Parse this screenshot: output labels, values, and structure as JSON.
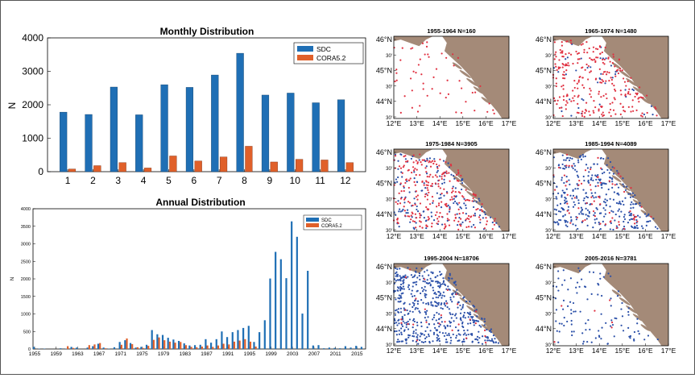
{
  "colors": {
    "sdc": "#1f6fb5",
    "cora": "#e0602a",
    "land": "#a48a78",
    "sea": "#ffffff",
    "sdc_dot": "#2a4fa8",
    "cora_dot": "#e03040"
  },
  "chart_data": [
    {
      "type": "bar",
      "title": "Monthly Distribution",
      "xlabel": "",
      "ylabel": "N",
      "ylim": [
        0,
        4000
      ],
      "yticks": [
        "0",
        "1000",
        "2000",
        "3000",
        "4000"
      ],
      "categories": [
        "1",
        "2",
        "3",
        "4",
        "5",
        "6",
        "7",
        "8",
        "9",
        "10",
        "11",
        "12"
      ],
      "legend_placement": "top-right",
      "series": [
        {
          "name": "SDC",
          "values": [
            1780,
            1710,
            2530,
            1700,
            2600,
            2520,
            2890,
            3540,
            2290,
            2350,
            2060,
            2150
          ]
        },
        {
          "name": "CORA5.2",
          "values": [
            80,
            180,
            270,
            110,
            470,
            320,
            440,
            760,
            290,
            370,
            350,
            270
          ]
        }
      ]
    },
    {
      "type": "bar",
      "title": "Annual Distribution",
      "xlabel": "",
      "ylabel": "N",
      "ylim": [
        0,
        4000
      ],
      "yticks": [
        "0",
        "500",
        "1000",
        "1500",
        "2000",
        "2500",
        "3000",
        "3500",
        "4000"
      ],
      "xticks": [
        "1955",
        "1959",
        "1963",
        "1967",
        "1971",
        "1975",
        "1979",
        "1983",
        "1987",
        "1991",
        "1995",
        "1999",
        "2003",
        "2007",
        "2011",
        "2015"
      ],
      "years": [
        1955,
        1956,
        1957,
        1958,
        1959,
        1960,
        1961,
        1962,
        1963,
        1964,
        1965,
        1966,
        1967,
        1968,
        1969,
        1970,
        1971,
        1972,
        1973,
        1974,
        1975,
        1976,
        1977,
        1978,
        1979,
        1980,
        1981,
        1982,
        1983,
        1984,
        1985,
        1986,
        1987,
        1988,
        1989,
        1990,
        1991,
        1992,
        1993,
        1994,
        1995,
        1996,
        1997,
        1998,
        1999,
        2000,
        2001,
        2002,
        2003,
        2004,
        2005,
        2006,
        2007,
        2008,
        2009,
        2010,
        2011,
        2012,
        2013,
        2014,
        2015,
        2016
      ],
      "legend_placement": "top-right",
      "series": [
        {
          "name": "SDC",
          "values": [
            60,
            10,
            10,
            0,
            0,
            20,
            10,
            60,
            40,
            0,
            40,
            80,
            150,
            40,
            10,
            50,
            200,
            250,
            170,
            40,
            60,
            120,
            540,
            420,
            400,
            320,
            270,
            230,
            160,
            100,
            110,
            120,
            280,
            180,
            280,
            500,
            340,
            480,
            540,
            600,
            660,
            200,
            480,
            820,
            2010,
            2770,
            2560,
            2020,
            3640,
            3200,
            1010,
            2230,
            100,
            110,
            20,
            40,
            30,
            20,
            80,
            40,
            90,
            60
          ]
        },
        {
          "name": "CORA5.2",
          "values": [
            0,
            0,
            0,
            0,
            0,
            0,
            80,
            30,
            0,
            0,
            110,
            130,
            170,
            20,
            0,
            0,
            120,
            300,
            140,
            50,
            30,
            90,
            260,
            330,
            250,
            210,
            180,
            200,
            110,
            60,
            50,
            70,
            100,
            60,
            100,
            150,
            130,
            210,
            240,
            280,
            210,
            70,
            0,
            0,
            0,
            0,
            0,
            0,
            0,
            0,
            0,
            0,
            0,
            0,
            0,
            0,
            0,
            0,
            0,
            0,
            0,
            0
          ]
        }
      ]
    }
  ],
  "maps": [
    {
      "title": "1955-1964 N=160",
      "lat_labels": [
        "46°N",
        "30'",
        "45°N",
        "30'",
        "44°N",
        "30'"
      ],
      "lon_labels": [
        "12°E",
        "13°E",
        "14°E",
        "15°E",
        "16°E",
        "17°E"
      ]
    },
    {
      "title": "1965-1974 N=1480",
      "lat_labels": [
        "46°N",
        "30'",
        "45°N",
        "30'",
        "44°N",
        "30'"
      ],
      "lon_labels": [
        "12°E",
        "13°E",
        "14°E",
        "15°E",
        "16°E",
        "17°E"
      ]
    },
    {
      "title": "1975-1984 N=3905",
      "lat_labels": [
        "46°N",
        "30'",
        "45°N",
        "30'",
        "44°N",
        "30'"
      ],
      "lon_labels": [
        "12°E",
        "13°E",
        "14°E",
        "15°E",
        "16°E",
        "17°E"
      ]
    },
    {
      "title": "1985-1994 N=4089",
      "lat_labels": [
        "46°N",
        "30'",
        "45°N",
        "30'",
        "44°N",
        "30'"
      ],
      "lon_labels": [
        "12°E",
        "13°E",
        "14°E",
        "15°E",
        "16°E",
        "17°E"
      ]
    },
    {
      "title": "1995-2004 N=18706",
      "lat_labels": [
        "46°N",
        "30'",
        "45°N",
        "30'",
        "44°N",
        "30'"
      ],
      "lon_labels": [
        "12°E",
        "13°E",
        "14°E",
        "15°E",
        "16°E",
        "17°E"
      ]
    },
    {
      "title": "2005-2016 N=3781",
      "lat_labels": [
        "46°N",
        "30'",
        "45°N",
        "30'",
        "44°N",
        "30'"
      ],
      "lon_labels": [
        "12°E",
        "13°E",
        "14°E",
        "15°E",
        "16°E",
        "17°E"
      ]
    }
  ]
}
